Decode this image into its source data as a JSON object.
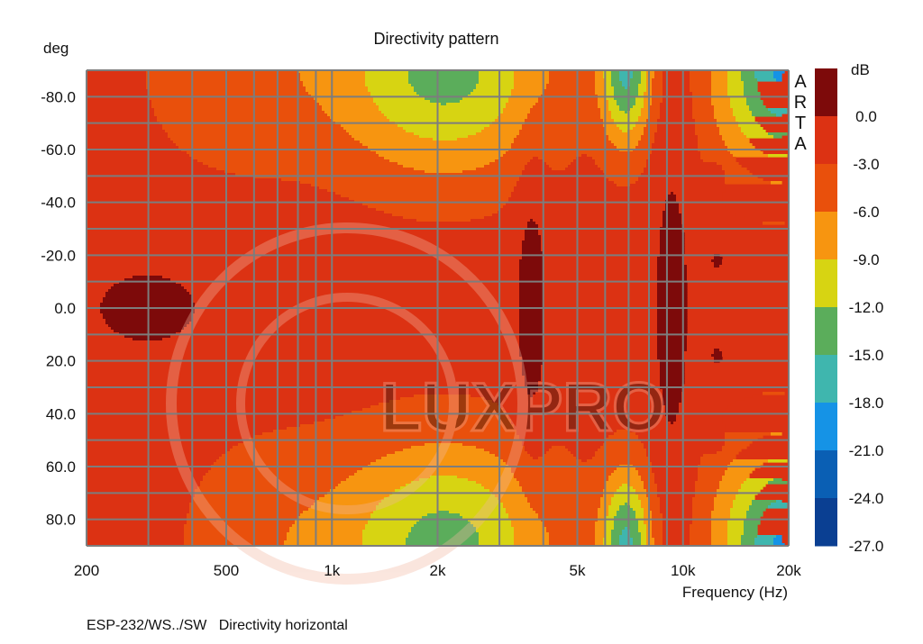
{
  "chart_data": {
    "type": "heatmap",
    "title": "Directivity pattern",
    "xlabel": "Frequency (Hz)",
    "ylabel": "deg",
    "x_scale": "log",
    "xlim": [
      200,
      20000
    ],
    "ylim": [
      -90,
      90
    ],
    "y_inverted": true,
    "x_ticks": [
      {
        "value": 200,
        "label": "200"
      },
      {
        "value": 500,
        "label": "500"
      },
      {
        "value": 1000,
        "label": "1k"
      },
      {
        "value": 2000,
        "label": "2k"
      },
      {
        "value": 5000,
        "label": "5k"
      },
      {
        "value": 10000,
        "label": "10k"
      },
      {
        "value": 20000,
        "label": "20k"
      }
    ],
    "x_grid": [
      200,
      300,
      400,
      500,
      600,
      700,
      800,
      900,
      1000,
      2000,
      3000,
      4000,
      5000,
      6000,
      7000,
      8000,
      9000,
      10000,
      20000
    ],
    "y_ticks": [
      {
        "value": -80,
        "label": "-80.0"
      },
      {
        "value": -60,
        "label": "-60.0"
      },
      {
        "value": -40,
        "label": "-40.0"
      },
      {
        "value": -20,
        "label": "-20.0"
      },
      {
        "value": 0,
        "label": "0.0"
      },
      {
        "value": 20,
        "label": "20.0"
      },
      {
        "value": 40,
        "label": "40.0"
      },
      {
        "value": 60,
        "label": "60.0"
      },
      {
        "value": 80,
        "label": "80.0"
      }
    ],
    "y_grid": [
      -90,
      -80,
      -70,
      -60,
      -50,
      -40,
      -30,
      -20,
      -10,
      0,
      10,
      20,
      30,
      40,
      50,
      60,
      70,
      80,
      90
    ],
    "colorbar": {
      "title": "dB",
      "ticks": [
        "0.0",
        "-3.0",
        "-6.0",
        "-9.0",
        "-12.0",
        "-15.0",
        "-18.0",
        "-21.0",
        "-24.0",
        "-27.0"
      ],
      "levels": [
        {
          "min": 0,
          "color": "#7d0a0a"
        },
        {
          "min": -3,
          "color": "#dc3213"
        },
        {
          "min": -6,
          "color": "#e9500c"
        },
        {
          "min": -9,
          "color": "#f79510"
        },
        {
          "min": -12,
          "color": "#d7d412"
        },
        {
          "min": -15,
          "color": "#5bad5b"
        },
        {
          "min": -18,
          "color": "#3fb6ae"
        },
        {
          "min": -21,
          "color": "#1593e6"
        },
        {
          "min": -24,
          "color": "#0a5fb4"
        },
        {
          "min": -27,
          "color": "#0a3f92"
        }
      ]
    },
    "field": {
      "base_db": -1.6,
      "features": [
        {
          "note": "on-axis low-frequency lobe",
          "f": 300,
          "deg": 0,
          "sigma_log10": 0.17,
          "sigma_deg": 16,
          "db": 2.2
        },
        {
          "note": "vertical band",
          "f": 3700,
          "deg": 0,
          "sigma_log10": 0.035,
          "sigma_deg": 50,
          "db": 3.0
        },
        {
          "note": "vertical band",
          "f": 9300,
          "deg": 0,
          "sigma_log10": 0.04,
          "sigma_deg": 46,
          "db": 2.8
        },
        {
          "note": "edge dip",
          "f": 2100,
          "deg": -90,
          "sigma_log10": 0.22,
          "sigma_deg": 28,
          "db": -11.5
        },
        {
          "note": "edge dip",
          "f": 2100,
          "deg": 90,
          "sigma_log10": 0.22,
          "sigma_deg": 28,
          "db": -11.5
        },
        {
          "note": "edge dip",
          "f": 6900,
          "deg": -90,
          "sigma_log10": 0.05,
          "sigma_deg": 20,
          "db": -13.5
        },
        {
          "note": "edge dip",
          "f": 6900,
          "deg": 90,
          "sigma_log10": 0.05,
          "sigma_deg": 20,
          "db": -13.5
        },
        {
          "note": "edge dip",
          "f": 19000,
          "deg": -90,
          "sigma_log10": 0.08,
          "sigma_deg": 26,
          "db": -16
        },
        {
          "note": "edge dip",
          "f": 19000,
          "deg": 90,
          "sigma_log10": 0.08,
          "sigma_deg": 26,
          "db": -16
        },
        {
          "note": "edge dip",
          "f": 13500,
          "deg": -90,
          "sigma_log10": 0.07,
          "sigma_deg": 30,
          "db": -5
        },
        {
          "note": "edge dip",
          "f": 13500,
          "deg": 90,
          "sigma_log10": 0.07,
          "sigma_deg": 30,
          "db": -5
        },
        {
          "note": "edge dip",
          "f": 550,
          "deg": -90,
          "sigma_log10": 0.2,
          "sigma_deg": 28,
          "db": -3.5
        },
        {
          "note": "edge dip",
          "f": 650,
          "deg": 90,
          "sigma_log10": 0.18,
          "sigma_deg": 30,
          "db": -3.2
        },
        {
          "note": "off-axis",
          "f": 12500,
          "deg": -50,
          "sigma_log10": 0.02,
          "sigma_deg": 4,
          "db": 2.6
        },
        {
          "note": "off-axis",
          "f": 12500,
          "deg": 50,
          "sigma_log10": 0.02,
          "sigma_deg": 4,
          "db": 2.6
        },
        {
          "note": "off-axis",
          "f": 12500,
          "deg": -18,
          "sigma_log10": 0.018,
          "sigma_deg": 4,
          "db": 2.4
        },
        {
          "note": "off-axis",
          "f": 12500,
          "deg": 18,
          "sigma_log10": 0.018,
          "sigma_deg": 4,
          "db": 2.4
        },
        {
          "note": "edge",
          "f": 20000,
          "deg": -15,
          "sigma_log10": 0.015,
          "sigma_deg": 5,
          "db": 2.6
        },
        {
          "note": "edge",
          "f": 20000,
          "deg": 15,
          "sigma_log10": 0.015,
          "sigma_deg": 5,
          "db": 2.6
        }
      ]
    },
    "watermark": {
      "text": "LUXPRO",
      "color": "#f3b6a0"
    },
    "side_label": [
      "A",
      "R",
      "T",
      "A"
    ]
  },
  "caption": {
    "text": "ESP-232/WS../SW   Directivity horizontal"
  }
}
